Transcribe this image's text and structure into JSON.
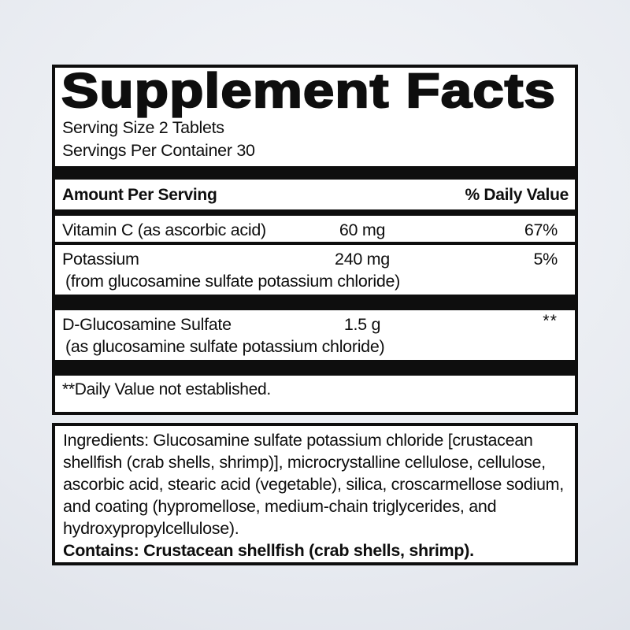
{
  "panel": {
    "title": "Supplement Facts",
    "serving_size": "Serving Size 2 Tablets",
    "servings_per_container": "Servings Per Container 30",
    "header": {
      "amount_label": "Amount Per Serving",
      "dv_label": "% Daily Value"
    },
    "rows": [
      {
        "name": "Vitamin C (as ascorbic acid)",
        "amount": "60 mg",
        "dv": "67%"
      },
      {
        "name": "Potassium",
        "amount": "240 mg",
        "dv": "5%",
        "note": "(from glucosamine sulfate potassium chloride)"
      },
      {
        "name": "D-Glucosamine Sulfate",
        "amount": "1.5 g",
        "dv": "**",
        "note": "(as glucosamine sulfate potassium chloride)"
      }
    ],
    "footnote": "**Daily Value not established."
  },
  "ingredients_box": {
    "ingredients": "Ingredients: Glucosamine sulfate potassium chloride [crustacean shellfish (crab shells, shrimp)], microcrystalline cellulose, cellulose, ascorbic acid, stearic acid (vegetable), silica, croscarmellose sodium, and coating (hypromellose, medium-chain triglycerides, and hydroxypropylcellulose).",
    "contains": "Contains: Crustacean shellfish (crab shells, shrimp)."
  },
  "colors": {
    "ink": "#0e0e0e",
    "panel_background": "#ffffff",
    "page_background_edge": "#d4d9e1",
    "page_background_center": "#f4f6f9"
  }
}
